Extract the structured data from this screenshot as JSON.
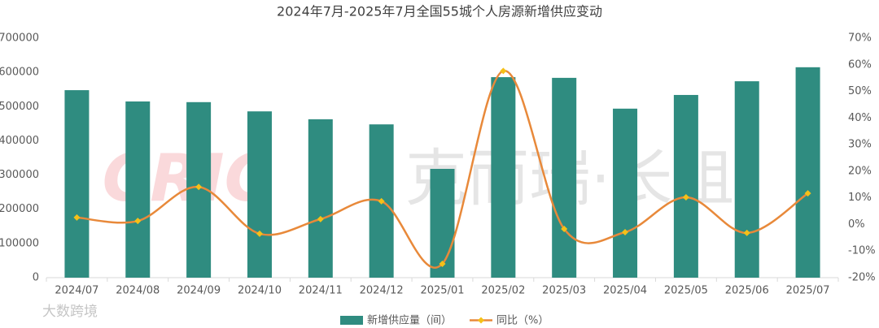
{
  "chart_data": {
    "type": "bar-line",
    "title": "2024年7月-2025年7月全国55城个人房源新增供应变动",
    "categories": [
      "2024/07",
      "2024/08",
      "2024/09",
      "2024/10",
      "2024/11",
      "2024/12",
      "2025/01",
      "2025/02",
      "2025/03",
      "2025/04",
      "2025/05",
      "2025/06",
      "2025/07"
    ],
    "series": [
      {
        "name": "新增供应量（间）",
        "color": "#2f8c80",
        "type": "bar",
        "values": [
          548000,
          515000,
          513000,
          486000,
          463000,
          448000,
          318000,
          586000,
          584000,
          494000,
          534000,
          574000,
          615000
        ]
      },
      {
        "name": "同比（%）",
        "color": "#e8893a",
        "marker_color": "#f5c018",
        "type": "line",
        "axis": "y2",
        "values": [
          2.6,
          1.3,
          14.1,
          -3.5,
          2.0,
          8.7,
          -14.8,
          57.7,
          -1.7,
          -2.9,
          10.2,
          -3.2,
          11.7
        ]
      }
    ],
    "ylim": [
      0,
      700000
    ],
    "yticks": [
      0,
      100000,
      200000,
      300000,
      400000,
      500000,
      600000,
      700000
    ],
    "y2lim": [
      -20,
      70
    ],
    "y2ticks": [
      {
        "value": -20,
        "label": "-20%"
      },
      {
        "value": -10,
        "label": "-10%"
      },
      {
        "value": 0,
        "label": "0%"
      },
      {
        "value": 10,
        "label": "10%"
      },
      {
        "value": 20,
        "label": "20%"
      },
      {
        "value": 30,
        "label": "30%"
      },
      {
        "value": 40,
        "label": "40%"
      },
      {
        "value": 50,
        "label": "50%"
      },
      {
        "value": 60,
        "label": "60%"
      },
      {
        "value": 70,
        "label": "70%"
      }
    ],
    "grid": false,
    "legend": "bottom",
    "watermarks": [
      "CRIC",
      "克而瑞·长租",
      "大数跨境"
    ]
  }
}
